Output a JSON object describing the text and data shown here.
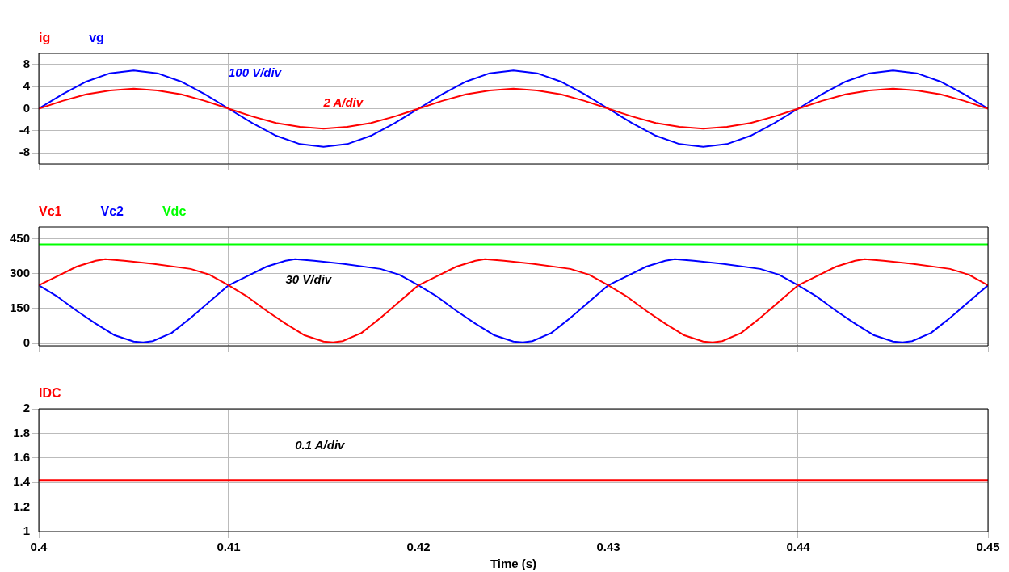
{
  "chart_data": [
    {
      "type": "line",
      "xlim": [
        0.4,
        0.45
      ],
      "xticks": [
        0.4,
        0.41,
        0.42,
        0.43,
        0.44,
        0.45
      ],
      "ylim": [
        -10,
        10
      ],
      "yticks": [
        -8,
        -4,
        0,
        4,
        8
      ],
      "grid": true,
      "legend": "top left",
      "tick_labels": "y",
      "marker": "none",
      "annotations": [
        "100 V/div",
        "2 A/div"
      ],
      "x": [
        0.4,
        0.40125,
        0.4025,
        0.40375,
        0.405,
        0.40625,
        0.4075,
        0.40875,
        0.41,
        0.41125,
        0.4125,
        0.41375,
        0.415,
        0.41625,
        0.4175,
        0.41875,
        0.42,
        0.42125,
        0.4225,
        0.42375,
        0.425,
        0.42625,
        0.4275,
        0.42875,
        0.43,
        0.43125,
        0.4325,
        0.43375,
        0.435,
        0.43625,
        0.4375,
        0.43875,
        0.44,
        0.44125,
        0.4425,
        0.44375,
        0.445,
        0.44625,
        0.4475,
        0.44875,
        0.45
      ],
      "series": [
        {
          "name": "ig",
          "color": "#ff0000",
          "values": [
            0,
            1.4,
            2.6,
            3.3,
            3.6,
            3.3,
            2.6,
            1.4,
            0,
            -1.4,
            -2.6,
            -3.3,
            -3.6,
            -3.3,
            -2.6,
            -1.4,
            0,
            1.4,
            2.6,
            3.3,
            3.6,
            3.3,
            2.6,
            1.4,
            0,
            -1.4,
            -2.6,
            -3.3,
            -3.6,
            -3.3,
            -2.6,
            -1.4,
            0,
            1.4,
            2.6,
            3.3,
            3.6,
            3.3,
            2.6,
            1.4,
            0
          ]
        },
        {
          "name": "vg",
          "color": "#0000ff",
          "values": [
            0,
            2.6,
            4.9,
            6.4,
            6.9,
            6.4,
            4.9,
            2.6,
            0,
            -2.6,
            -4.9,
            -6.4,
            -6.9,
            -6.4,
            -4.9,
            -2.6,
            0,
            2.6,
            4.9,
            6.4,
            6.9,
            6.4,
            4.9,
            2.6,
            0,
            -2.6,
            -4.9,
            -6.4,
            -6.9,
            -6.4,
            -4.9,
            -2.6,
            0,
            2.6,
            4.9,
            6.4,
            6.9,
            6.4,
            4.9,
            2.6,
            0
          ]
        }
      ]
    },
    {
      "type": "line",
      "xlim": [
        0.4,
        0.45
      ],
      "xticks": [
        0.4,
        0.41,
        0.42,
        0.43,
        0.44,
        0.45
      ],
      "ylim": [
        -10,
        500
      ],
      "yticks": [
        0,
        150,
        300,
        450
      ],
      "grid": true,
      "legend": "top left",
      "tick_labels": "y",
      "marker": "none",
      "annotations": [
        "30 V/div"
      ],
      "series": [
        {
          "name": "Vc1",
          "color": "#ff0000",
          "x": [
            0.4,
            0.401,
            0.402,
            0.403,
            0.4035,
            0.4045,
            0.406,
            0.408,
            0.409,
            0.41,
            0.411,
            0.412,
            0.413,
            0.414,
            0.415,
            0.4155,
            0.416,
            0.417,
            0.418,
            0.419,
            0.42,
            0.421,
            0.422,
            0.423,
            0.4235,
            0.4245,
            0.426,
            0.428,
            0.429,
            0.43,
            0.431,
            0.432,
            0.433,
            0.434,
            0.435,
            0.4355,
            0.436,
            0.437,
            0.438,
            0.439,
            0.44,
            0.441,
            0.442,
            0.443,
            0.4435,
            0.4445,
            0.446,
            0.448,
            0.449,
            0.45
          ],
          "values": [
            250,
            290,
            330,
            355,
            362,
            355,
            342,
            320,
            295,
            250,
            200,
            140,
            85,
            35,
            8,
            5,
            10,
            45,
            110,
            180,
            250,
            290,
            330,
            355,
            362,
            355,
            342,
            320,
            295,
            250,
            200,
            140,
            85,
            35,
            8,
            5,
            10,
            45,
            110,
            180,
            250,
            290,
            330,
            355,
            362,
            355,
            342,
            320,
            295,
            250
          ]
        },
        {
          "name": "Vc2",
          "color": "#0000ff",
          "x": [
            0.4,
            0.401,
            0.402,
            0.403,
            0.404,
            0.405,
            0.4055,
            0.406,
            0.407,
            0.408,
            0.409,
            0.41,
            0.411,
            0.412,
            0.413,
            0.4135,
            0.4145,
            0.416,
            0.418,
            0.419,
            0.42,
            0.421,
            0.422,
            0.423,
            0.424,
            0.425,
            0.4255,
            0.426,
            0.427,
            0.428,
            0.429,
            0.43,
            0.431,
            0.432,
            0.433,
            0.4335,
            0.4345,
            0.436,
            0.438,
            0.439,
            0.44,
            0.441,
            0.442,
            0.443,
            0.444,
            0.445,
            0.4455,
            0.446,
            0.447,
            0.448,
            0.449,
            0.45
          ],
          "values": [
            250,
            200,
            140,
            85,
            35,
            8,
            5,
            10,
            45,
            110,
            180,
            250,
            290,
            330,
            355,
            362,
            355,
            342,
            320,
            295,
            250,
            200,
            140,
            85,
            35,
            8,
            5,
            10,
            45,
            110,
            180,
            250,
            290,
            330,
            355,
            362,
            355,
            342,
            320,
            295,
            250,
            200,
            140,
            85,
            35,
            8,
            5,
            10,
            45,
            110,
            180,
            250
          ]
        },
        {
          "name": "Vdc",
          "color": "#00ff00",
          "x": [
            0.4,
            0.45
          ],
          "values": [
            425,
            425
          ]
        }
      ]
    },
    {
      "type": "line",
      "xlim": [
        0.4,
        0.45
      ],
      "xticks": [
        0.4,
        0.41,
        0.42,
        0.43,
        0.44,
        0.45
      ],
      "ylim": [
        1,
        2
      ],
      "yticks": [
        1,
        1.2,
        1.4,
        1.6,
        1.8,
        2
      ],
      "grid": true,
      "legend": "top left",
      "marker": "none",
      "xlabel": "Time (s)",
      "annotations": [
        "0.1 A/div"
      ],
      "series": [
        {
          "name": "IDC",
          "color": "#ff0000",
          "x": [
            0.4,
            0.45
          ],
          "values": [
            1.42,
            1.42
          ]
        }
      ]
    }
  ]
}
